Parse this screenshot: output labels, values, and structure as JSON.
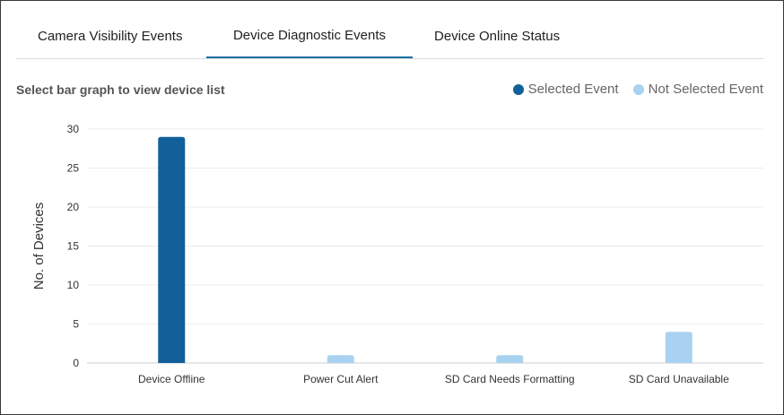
{
  "tabs": [
    {
      "label": "Camera Visibility Events",
      "active": false
    },
    {
      "label": "Device Diagnostic Events",
      "active": true
    },
    {
      "label": "Device Online Status",
      "active": false
    }
  ],
  "subtitle": "Select bar graph to view device list",
  "legend": {
    "selected": {
      "label": "Selected Event",
      "color": "#11609a"
    },
    "not_selected": {
      "label": "Not Selected Event",
      "color": "#a8d2ef"
    }
  },
  "chart_data": {
    "type": "bar",
    "ylabel": "No. of Devices",
    "ylim": [
      0,
      30
    ],
    "yticks": [
      0,
      5,
      10,
      15,
      20,
      25,
      30
    ],
    "grid": true,
    "categories": [
      "Device Offline",
      "Power Cut Alert",
      "SD Card Needs Formatting",
      "SD Card Unavailable"
    ],
    "values": [
      29,
      1,
      1,
      4
    ],
    "selected_index": 0
  }
}
